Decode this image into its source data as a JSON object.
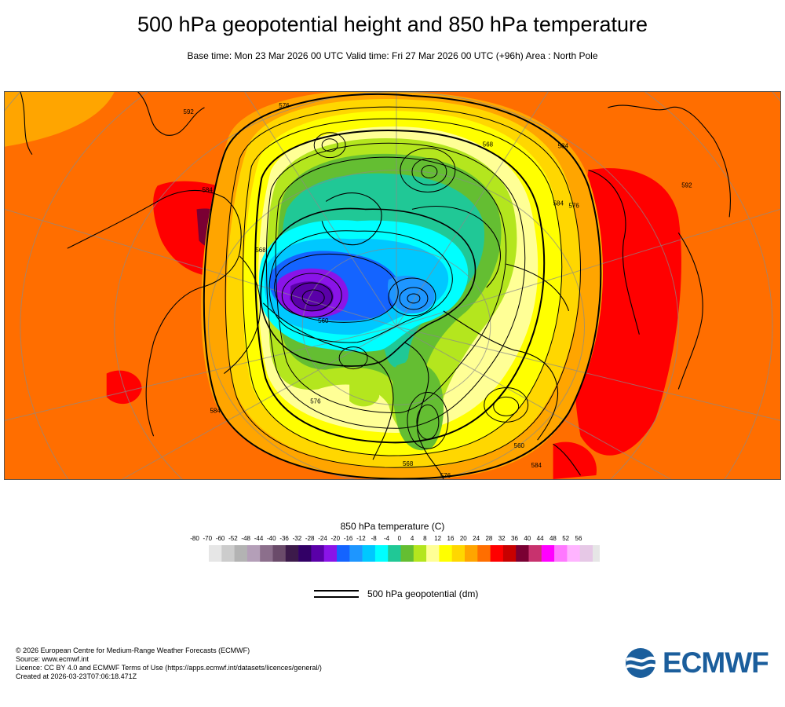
{
  "title": "500 hPa geopotential height and 850 hPa temperature",
  "subtitle": "Base time: Mon 23 Mar 2026 00 UTC Valid time: Fri 27 Mar 2026 00 UTC (+96h) Area : North Pole",
  "map": {
    "contour_labels": [
      "576",
      "560",
      "584",
      "568",
      "576",
      "576",
      "584",
      "584",
      "592",
      "584",
      "568",
      "568",
      "592",
      "560",
      "584",
      "576"
    ]
  },
  "legend": {
    "title": "850 hPa temperature (C)",
    "ticks": [
      "-80",
      "-70",
      "-60",
      "-52",
      "-48",
      "-44",
      "-40",
      "-36",
      "-32",
      "-28",
      "-24",
      "-20",
      "-16",
      "-12",
      "-8",
      "-4",
      "0",
      "4",
      "8",
      "12",
      "16",
      "20",
      "24",
      "28",
      "32",
      "36",
      "40",
      "44",
      "48",
      "52",
      "56"
    ],
    "colors": [
      "#e6e6e6",
      "#cccccc",
      "#b3b3b3",
      "#b49fb8",
      "#8c6f8c",
      "#6a4b6a",
      "#3c1a4a",
      "#320066",
      "#5a00a8",
      "#8a14e8",
      "#1464ff",
      "#1e96ff",
      "#00c8ff",
      "#00ffff",
      "#20c896",
      "#64be32",
      "#b4e61e",
      "#ffff96",
      "#ffff00",
      "#ffd700",
      "#ffa500",
      "#ff6e00",
      "#ff0000",
      "#c80000",
      "#7a0033",
      "#c8326e",
      "#ff00ff",
      "#ff78ff",
      "#ffb4ff",
      "#e6c8e6",
      "#e6e6e6"
    ]
  },
  "contour_legend": {
    "label": "500 hPa geopotential (dm)"
  },
  "footer": {
    "lines": [
      "© 2026 European Centre for Medium-Range Weather Forecasts (ECMWF)",
      "Source: www.ecmwf.int",
      "Licence: CC BY 4.0 and ECMWF Terms of Use (https://apps.ecmwf.int/datasets/licences/general/)",
      "Created at 2026-03-23T07:06:18.471Z"
    ]
  },
  "logo": {
    "text": "ECMWF",
    "color": "#1b5e9c"
  }
}
